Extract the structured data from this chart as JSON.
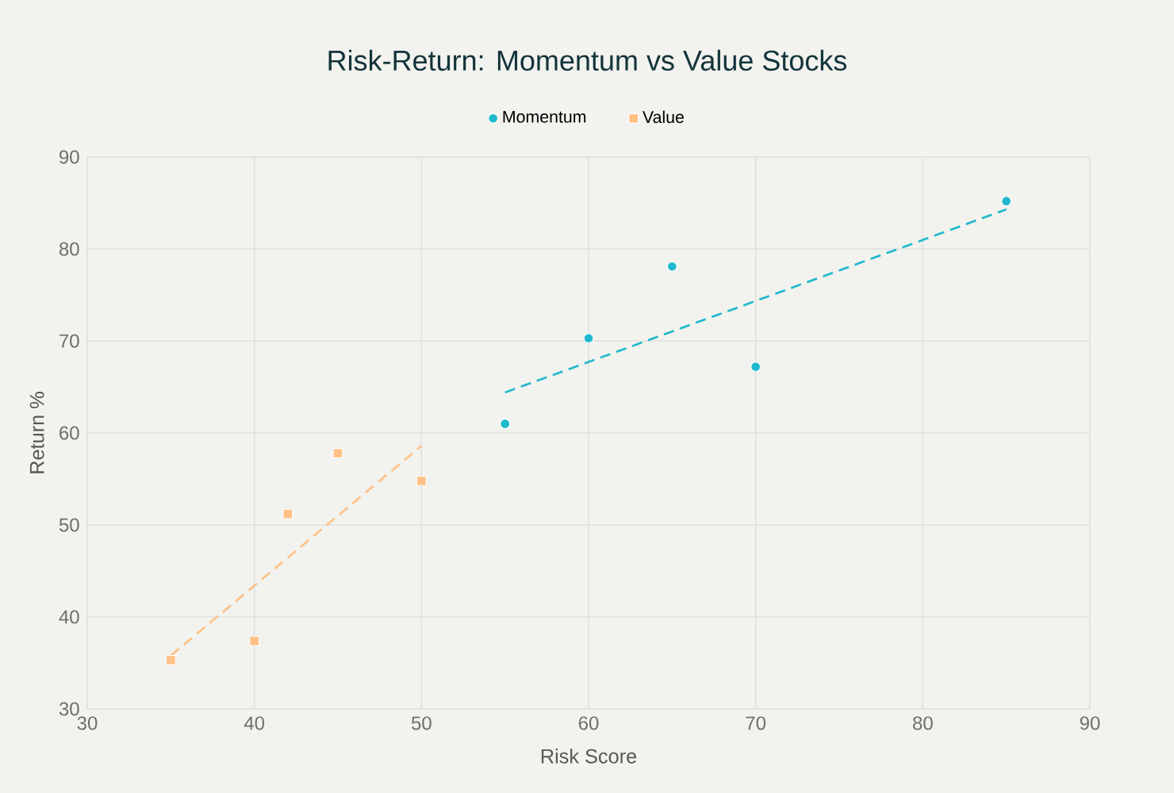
{
  "chart_data": {
    "type": "scatter",
    "title": "Risk-Return: Momentum vs Value Stocks",
    "xlabel": "Risk Score",
    "ylabel": "Return %",
    "series": [
      {
        "name": "Momentum",
        "color": "#1fb8cd",
        "marker": "circle",
        "x": [
          55,
          60,
          65,
          70,
          85
        ],
        "values": [
          61.0,
          70.3,
          78.1,
          67.2,
          85.2
        ]
      },
      {
        "name": "Value",
        "color": "#ffc185",
        "marker": "square",
        "x": [
          35,
          40,
          42,
          45,
          50
        ],
        "values": [
          35.3,
          37.4,
          51.2,
          57.8,
          54.8
        ]
      },
      {
        "type": "line",
        "color": "#1fb8cd",
        "line_style": "dashed",
        "x": [
          55,
          85
        ],
        "values": [
          64.4,
          84.3
        ]
      },
      {
        "type": "line",
        "color": "#ffc185",
        "line_style": "dashed",
        "x": [
          35,
          50
        ],
        "values": [
          35.8,
          58.6
        ]
      }
    ],
    "xlim": [
      30,
      90
    ],
    "ylim": [
      30,
      90
    ],
    "xticks": [
      30,
      40,
      50,
      60,
      70,
      80,
      90
    ],
    "yticks": [
      30,
      40,
      50,
      60,
      70,
      80,
      90
    ],
    "grid": true,
    "legend": "top"
  }
}
